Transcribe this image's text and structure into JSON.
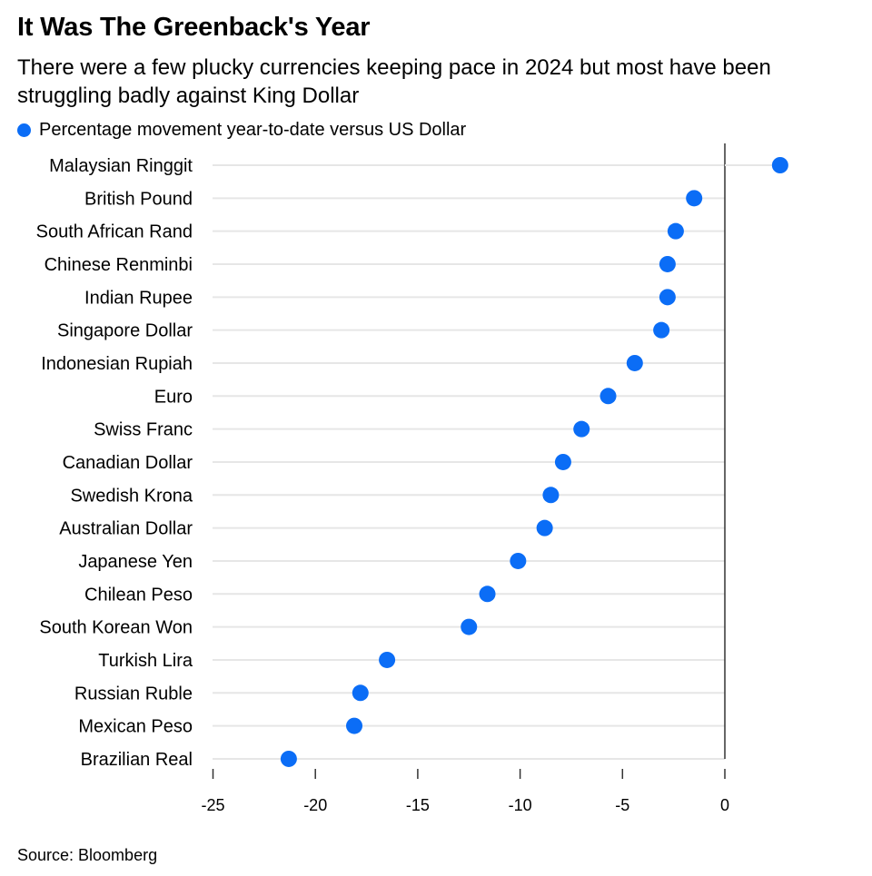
{
  "colors": {
    "accent": "#0b6df6",
    "grid": "#e6e6e6",
    "axis": "#333333"
  },
  "header": {
    "title": "It Was The Greenback's Year",
    "subtitle": "There were a few plucky currencies keeping pace in 2024 but most have been struggling badly against King Dollar"
  },
  "footer": {
    "source": "Source: Bloomberg"
  },
  "chart_data": {
    "type": "scatter",
    "legend": [
      "Percentage movement year-to-date versus US Dollar"
    ],
    "legend_placement": "top-left",
    "categories": [
      "Malaysian Ringgit",
      "British Pound",
      "South African Rand",
      "Chinese Renminbi",
      "Indian Rupee",
      "Singapore Dollar",
      "Indonesian Rupiah",
      "Euro",
      "Swiss Franc",
      "Canadian Dollar",
      "Swedish Krona",
      "Australian Dollar",
      "Japanese Yen",
      "Chilean Peso",
      "South Korean Won",
      "Turkish Lira",
      "Russian Ruble",
      "Mexican Peso",
      "Brazilian Real"
    ],
    "values": [
      2.7,
      -1.5,
      -2.4,
      -2.8,
      -2.8,
      -3.1,
      -4.4,
      -5.7,
      -7.0,
      -7.9,
      -8.5,
      -8.8,
      -10.1,
      -11.6,
      -12.5,
      -16.5,
      -17.8,
      -18.1,
      -21.3
    ],
    "xlim": [
      -25,
      3
    ],
    "xticks": [
      -25,
      -20,
      -15,
      -10,
      -5,
      0
    ],
    "grid": true,
    "orientation": "horizontal"
  }
}
